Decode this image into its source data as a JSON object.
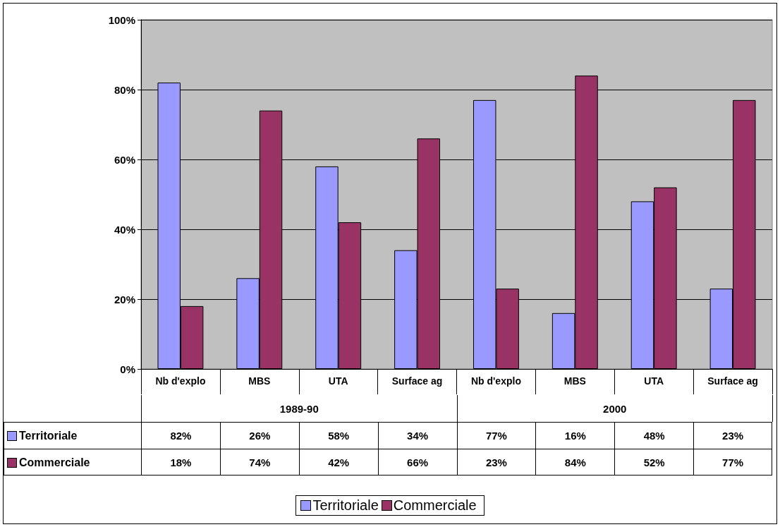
{
  "chart_data": {
    "type": "bar",
    "categories": [
      "Nb d'explo",
      "MBS",
      "UTA",
      "Surface ag",
      "Nb d'explo",
      "MBS",
      "UTA",
      "Surface ag"
    ],
    "annotations": [
      "1989-90",
      "2000"
    ],
    "series": [
      {
        "name": "Territoriale",
        "color": "#9999ff",
        "values": [
          82,
          26,
          58,
          34,
          77,
          16,
          48,
          23
        ],
        "value_labels": [
          "82%",
          "26%",
          "58%",
          "34%",
          "77%",
          "16%",
          "48%",
          "23%"
        ]
      },
      {
        "name": "Commerciale",
        "color": "#993366",
        "values": [
          18,
          74,
          42,
          66,
          23,
          84,
          52,
          77
        ],
        "value_labels": [
          "18%",
          "74%",
          "42%",
          "66%",
          "23%",
          "84%",
          "52%",
          "77%"
        ]
      }
    ],
    "ylim": [
      0,
      100
    ],
    "yticks": [
      {
        "value": 0,
        "label": "0%"
      },
      {
        "value": 20,
        "label": "20%"
      },
      {
        "value": 40,
        "label": "40%"
      },
      {
        "value": 60,
        "label": "60%"
      },
      {
        "value": 80,
        "label": "80%"
      },
      {
        "value": 100,
        "label": "100%"
      }
    ],
    "grid": "y",
    "legend": "bottom"
  }
}
